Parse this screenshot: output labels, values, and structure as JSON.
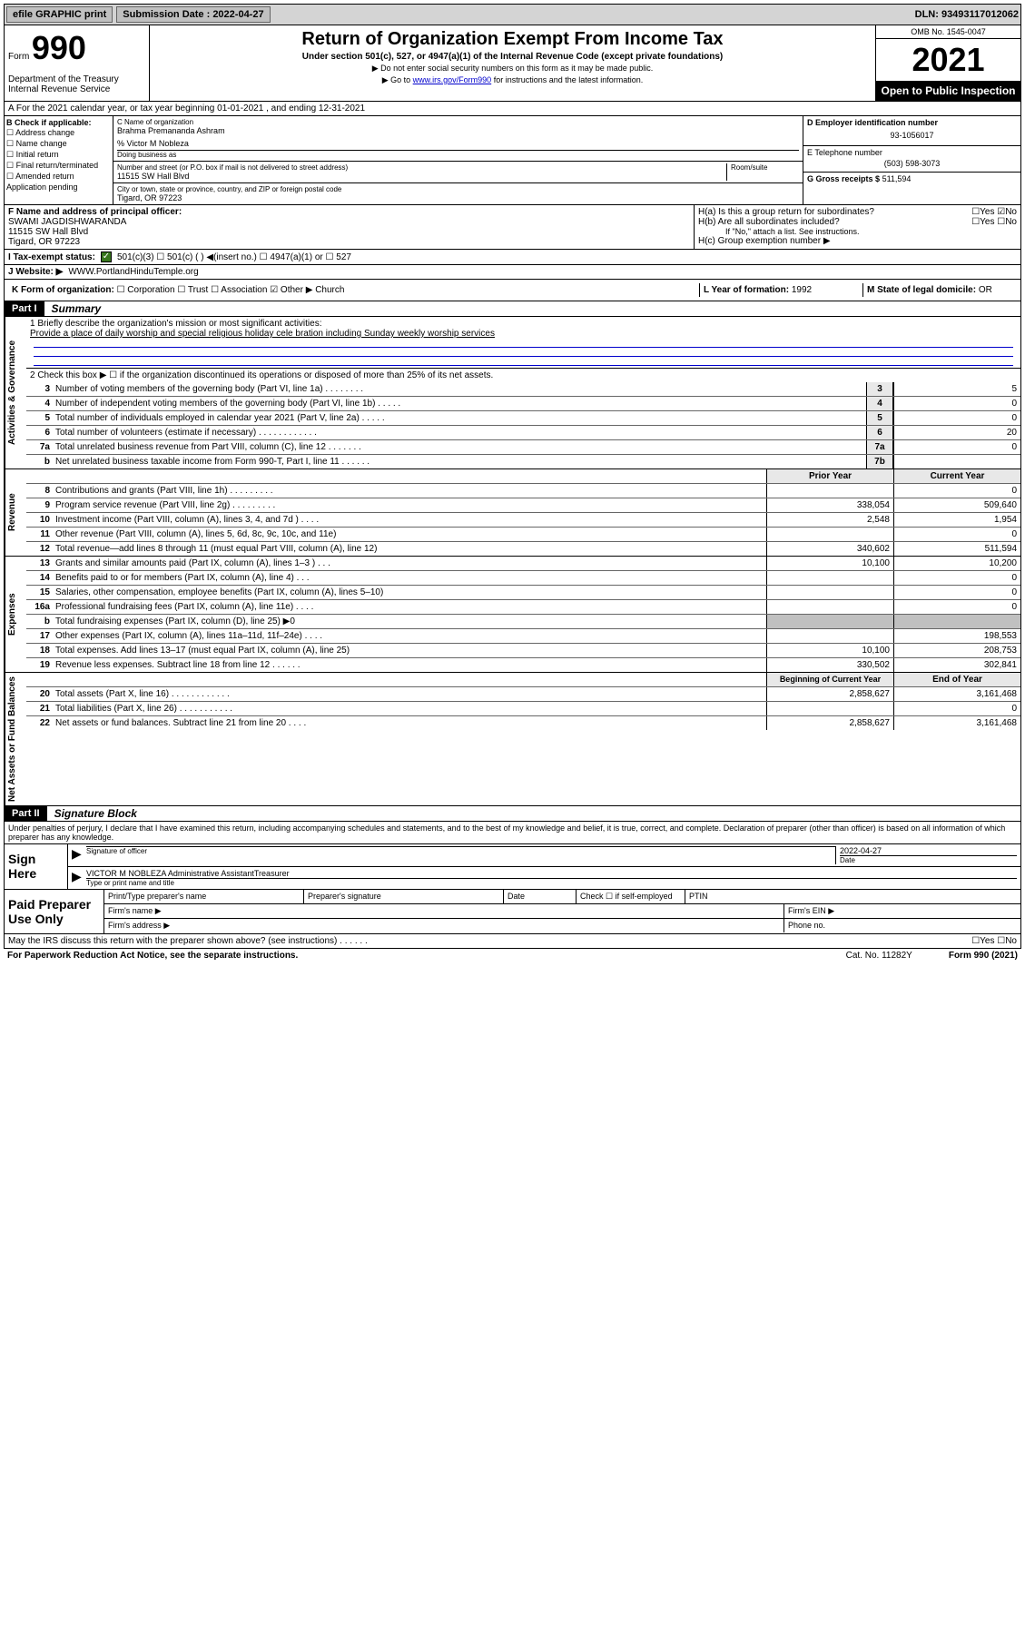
{
  "top": {
    "efile": "efile GRAPHIC print",
    "sub_label": "Submission Date : 2022-04-27",
    "dln": "DLN: 93493117012062"
  },
  "header": {
    "form_word": "Form",
    "form_num": "990",
    "dept": "Department of the Treasury Internal Revenue Service",
    "title": "Return of Organization Exempt From Income Tax",
    "sub": "Under section 501(c), 527, or 4947(a)(1) of the Internal Revenue Code (except private foundations)",
    "note1": "▶ Do not enter social security numbers on this form as it may be made public.",
    "note2_pre": "▶ Go to ",
    "note2_link": "www.irs.gov/Form990",
    "note2_post": " for instructions and the latest information.",
    "omb": "OMB No. 1545-0047",
    "year": "2021",
    "open": "Open to Public Inspection"
  },
  "line_a": "A For the 2021 calendar year, or tax year beginning 01-01-2021  , and ending 12-31-2021",
  "b": {
    "heading": "B Check if applicable:",
    "opts": [
      "☐ Address change",
      "☐ Name change",
      "☐ Initial return",
      "☐ Final return/terminated",
      "☐ Amended return",
      "   Application pending"
    ]
  },
  "c": {
    "name_label": "C Name of organization",
    "name": "Brahma Premananda Ashram",
    "care_of": "% Victor M Nobleza",
    "dba_label": "Doing business as",
    "addr_label": "Number and street (or P.O. box if mail is not delivered to street address)",
    "room": "Room/suite",
    "addr": "11515 SW Hall Blvd",
    "city_label": "City or town, state or province, country, and ZIP or foreign postal code",
    "city": "Tigard, OR  97223"
  },
  "d": {
    "label": "D Employer identification number",
    "val": "93-1056017"
  },
  "e": {
    "label": "E Telephone number",
    "val": "(503) 598-3073"
  },
  "g": {
    "label": "G Gross receipts $",
    "val": "511,594"
  },
  "f": {
    "label": "F Name and address of principal officer:",
    "name": "SWAMI JAGDISHWARANDA",
    "addr": "11515 SW Hall Blvd",
    "city": "Tigard, OR  97223"
  },
  "h": {
    "a": "H(a)  Is this a group return for subordinates?",
    "a_ans": "☐Yes ☑No",
    "b": "H(b)  Are all subordinates included?",
    "b_ans": "☐Yes ☐No",
    "b_note": "If \"No,\" attach a list. See instructions.",
    "c": "H(c)  Group exemption number ▶"
  },
  "i": {
    "label": "I   Tax-exempt status:",
    "opts": "501(c)(3)     ☐  501(c) (  ) ◀(insert no.)     ☐  4947(a)(1) or  ☐  527"
  },
  "j": {
    "label": "J   Website: ▶",
    "val": "WWW.PortlandHinduTemple.org"
  },
  "k": {
    "label": "K Form of organization:",
    "opts": "☐ Corporation  ☐ Trust  ☐ Association  ☑ Other ▶",
    "other": "Church"
  },
  "l": {
    "label": "L Year of formation:",
    "val": "1992"
  },
  "m": {
    "label": "M State of legal domicile:",
    "val": "OR"
  },
  "part1": {
    "num": "Part I",
    "title": "Summary"
  },
  "s1": {
    "q": "1   Briefly describe the organization's mission or most significant activities:",
    "a": "Provide a place of daily worship and special religious holiday cele bration including Sunday weekly worship services"
  },
  "s2": "2   Check this box ▶ ☐  if the organization discontinued its operations or disposed of more than 25% of its net assets.",
  "srows_gov": [
    {
      "n": "3",
      "t": "Number of voting members of the governing body (Part VI, line 1a)  .   .   .   .   .   .   .   .",
      "bn": "3",
      "v": "5"
    },
    {
      "n": "4",
      "t": "Number of independent voting members of the governing body (Part VI, line 1b)  .   .   .   .   .",
      "bn": "4",
      "v": "0"
    },
    {
      "n": "5",
      "t": "Total number of individuals employed in calendar year 2021 (Part V, line 2a)  .   .   .   .   .",
      "bn": "5",
      "v": "0"
    },
    {
      "n": "6",
      "t": "Total number of volunteers (estimate if necessary)  .   .   .   .   .   .   .   .   .   .   .   .",
      "bn": "6",
      "v": "20"
    },
    {
      "n": "7a",
      "t": "Total unrelated business revenue from Part VIII, column (C), line 12  .   .   .   .   .   .   .",
      "bn": "7a",
      "v": "0"
    },
    {
      "n": "b",
      "t": "Net unrelated business taxable income from Form 990-T, Part I, line 11  .   .   .   .   .   .",
      "bn": "7b",
      "v": ""
    }
  ],
  "col_hdr": {
    "p": "Prior Year",
    "c": "Current Year"
  },
  "srows_rev": [
    {
      "n": "8",
      "t": "Contributions and grants (Part VIII, line 1h)  .   .   .   .   .   .   .   .   .",
      "p": "",
      "c": "0"
    },
    {
      "n": "9",
      "t": "Program service revenue (Part VIII, line 2g)  .   .   .   .   .   .   .   .   .",
      "p": "338,054",
      "c": "509,640"
    },
    {
      "n": "10",
      "t": "Investment income (Part VIII, column (A), lines 3, 4, and 7d )  .   .   .   .",
      "p": "2,548",
      "c": "1,954"
    },
    {
      "n": "11",
      "t": "Other revenue (Part VIII, column (A), lines 5, 6d, 8c, 9c, 10c, and 11e)",
      "p": "",
      "c": "0"
    },
    {
      "n": "12",
      "t": "Total revenue—add lines 8 through 11 (must equal Part VIII, column (A), line 12)",
      "p": "340,602",
      "c": "511,594"
    }
  ],
  "srows_exp": [
    {
      "n": "13",
      "t": "Grants and similar amounts paid (Part IX, column (A), lines 1–3 )  .   .   .",
      "p": "10,100",
      "c": "10,200"
    },
    {
      "n": "14",
      "t": "Benefits paid to or for members (Part IX, column (A), line 4)  .   .   .",
      "p": "",
      "c": "0"
    },
    {
      "n": "15",
      "t": "Salaries, other compensation, employee benefits (Part IX, column (A), lines 5–10)",
      "p": "",
      "c": "0"
    },
    {
      "n": "16a",
      "t": "Professional fundraising fees (Part IX, column (A), line 11e)  .   .   .   .",
      "p": "",
      "c": "0"
    },
    {
      "n": "b",
      "t": "Total fundraising expenses (Part IX, column (D), line 25) ▶0",
      "p": "GREY",
      "c": "GREY"
    },
    {
      "n": "17",
      "t": "Other expenses (Part IX, column (A), lines 11a–11d, 11f–24e)  .   .   .   .",
      "p": "",
      "c": "198,553"
    },
    {
      "n": "18",
      "t": "Total expenses. Add lines 13–17 (must equal Part IX, column (A), line 25)",
      "p": "10,100",
      "c": "208,753"
    },
    {
      "n": "19",
      "t": "Revenue less expenses. Subtract line 18 from line 12  .   .   .   .   .   .",
      "p": "330,502",
      "c": "302,841"
    }
  ],
  "col_hdr2": {
    "p": "Beginning of Current Year",
    "c": "End of Year"
  },
  "srows_net": [
    {
      "n": "20",
      "t": "Total assets (Part X, line 16)  .   .   .   .   .   .   .   .   .   .   .   .",
      "p": "2,858,627",
      "c": "3,161,468"
    },
    {
      "n": "21",
      "t": "Total liabilities (Part X, line 26)  .   .   .   .   .   .   .   .   .   .   .",
      "p": "",
      "c": "0"
    },
    {
      "n": "22",
      "t": "Net assets or fund balances. Subtract line 21 from line 20  .   .   .   .",
      "p": "2,858,627",
      "c": "3,161,468"
    }
  ],
  "vtabs": {
    "gov": "Activities & Governance",
    "rev": "Revenue",
    "exp": "Expenses",
    "net": "Net Assets or Fund Balances"
  },
  "part2": {
    "num": "Part II",
    "title": "Signature Block"
  },
  "sig": {
    "decl": "Under penalties of perjury, I declare that I have examined this return, including accompanying schedules and statements, and to the best of my knowledge and belief, it is true, correct, and complete. Declaration of preparer (other than officer) is based on all information of which preparer has any knowledge.",
    "here": "Sign Here",
    "date": "2022-04-27",
    "sig_of": "Signature of officer",
    "date_lbl": "Date",
    "officer": "VICTOR M NOBLEZA  Administrative AssistantTreasurer",
    "officer_lbl": "Type or print name and title"
  },
  "prep": {
    "title": "Paid Preparer Use Only",
    "h1": "Print/Type preparer's name",
    "h2": "Preparer's signature",
    "h3": "Date",
    "h4": "Check ☐ if self-employed",
    "h5": "PTIN",
    "firm_name": "Firm's name   ▶",
    "firm_ein": "Firm's EIN ▶",
    "firm_addr": "Firm's address ▶",
    "phone": "Phone no."
  },
  "footer": {
    "q": "May the IRS discuss this return with the preparer shown above? (see instructions)  .   .   .   .   .   .",
    "ans": "☐Yes  ☐No"
  },
  "bottom": {
    "l": "For Paperwork Reduction Act Notice, see the separate instructions.",
    "c": "Cat. No. 11282Y",
    "r": "Form 990 (2021)"
  }
}
